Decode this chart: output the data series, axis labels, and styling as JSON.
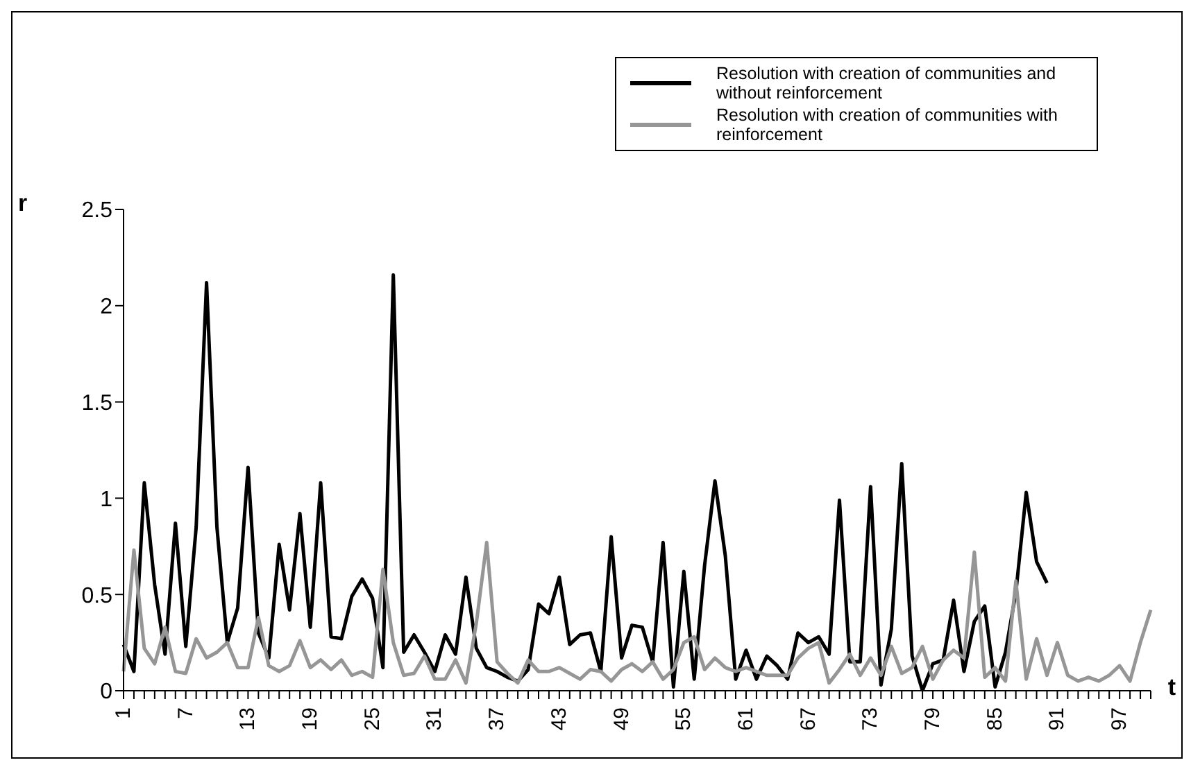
{
  "chart_data": {
    "type": "line",
    "xlabel": "t",
    "ylabel": "r",
    "categories": [
      "1",
      null,
      null,
      null,
      null,
      null,
      "7",
      null,
      null,
      null,
      null,
      null,
      "13",
      null,
      null,
      null,
      null,
      null,
      "19",
      null,
      null,
      null,
      null,
      null,
      "25",
      null,
      null,
      null,
      null,
      null,
      "31",
      null,
      null,
      null,
      null,
      null,
      "37",
      null,
      null,
      null,
      null,
      null,
      "43",
      null,
      null,
      null,
      null,
      null,
      "49",
      null,
      null,
      null,
      null,
      null,
      "55",
      null,
      null,
      null,
      null,
      null,
      "61",
      null,
      null,
      null,
      null,
      null,
      "67",
      null,
      null,
      null,
      null,
      null,
      "73",
      null,
      null,
      null,
      null,
      null,
      "79",
      null,
      null,
      null,
      null,
      null,
      "85",
      null,
      null,
      null,
      null,
      null,
      "91",
      null,
      null,
      null,
      null,
      null,
      "97",
      null,
      null,
      null
    ],
    "series": [
      {
        "name": "Resolution with creation of communities and without reinforcement",
        "color": "#000000",
        "values": [
          0.24,
          0.1,
          1.08,
          0.55,
          0.19,
          0.87,
          0.23,
          0.85,
          2.12,
          0.85,
          0.25,
          0.43,
          1.16,
          0.3,
          0.17,
          0.76,
          0.42,
          0.92,
          0.33,
          1.08,
          0.28,
          0.27,
          0.49,
          0.58,
          0.48,
          0.12,
          2.16,
          0.2,
          0.29,
          0.2,
          0.1,
          0.29,
          0.19,
          0.59,
          0.22,
          0.12,
          0.1,
          0.07,
          0.05,
          0.11,
          0.45,
          0.4,
          0.59,
          0.24,
          0.29,
          0.3,
          0.1,
          0.8,
          0.17,
          0.34,
          0.33,
          0.15,
          0.77,
          0.02,
          0.62,
          0.06,
          0.65,
          1.09,
          0.7,
          0.06,
          0.21,
          0.06,
          0.18,
          0.13,
          0.06,
          0.3,
          0.25,
          0.28,
          0.19,
          0.99,
          0.15,
          0.15,
          1.06,
          0.03,
          0.32,
          1.18,
          0.18,
          0.0,
          0.14,
          0.16,
          0.47,
          0.1,
          0.36,
          0.44,
          0.02,
          0.2,
          0.51,
          1.03,
          0.67,
          0.56,
          null,
          null,
          null,
          null,
          null,
          null,
          null,
          null,
          null,
          null
        ]
      },
      {
        "name": "Resolution with creation of communities with reinforcement",
        "color": "#969696",
        "values": [
          0.1,
          0.73,
          0.22,
          0.14,
          0.33,
          0.1,
          0.09,
          0.27,
          0.17,
          0.2,
          0.25,
          0.12,
          0.12,
          0.38,
          0.13,
          0.1,
          0.13,
          0.26,
          0.12,
          0.16,
          0.11,
          0.16,
          0.08,
          0.1,
          0.07,
          0.63,
          0.25,
          0.08,
          0.09,
          0.18,
          0.06,
          0.06,
          0.16,
          0.04,
          0.35,
          0.77,
          0.15,
          0.09,
          0.04,
          0.16,
          0.1,
          0.1,
          0.12,
          0.09,
          0.06,
          0.11,
          0.1,
          0.05,
          0.11,
          0.14,
          0.1,
          0.15,
          0.06,
          0.11,
          0.25,
          0.28,
          0.11,
          0.17,
          0.12,
          0.1,
          0.12,
          0.1,
          0.08,
          0.08,
          0.08,
          0.17,
          0.22,
          0.25,
          0.04,
          0.11,
          0.19,
          0.08,
          0.17,
          0.08,
          0.23,
          0.09,
          0.12,
          0.23,
          0.06,
          0.16,
          0.21,
          0.17,
          0.72,
          0.07,
          0.12,
          0.05,
          0.57,
          0.06,
          0.27,
          0.08,
          0.25,
          0.08,
          0.05,
          0.07,
          0.05,
          0.08,
          0.13,
          0.05,
          0.25,
          0.42
        ]
      }
    ],
    "ylim": [
      0,
      2.5
    ],
    "yticks": [
      0,
      0.5,
      1,
      1.5,
      2,
      2.5
    ],
    "grid": false,
    "legend": "top right",
    "marker": "none",
    "line_style": "solid"
  }
}
